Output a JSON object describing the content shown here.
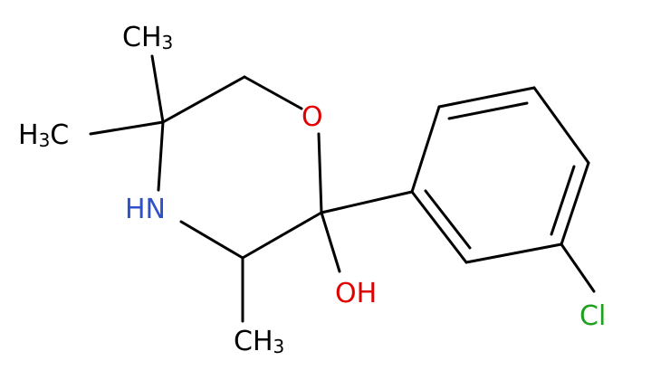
{
  "nodes": [
    {
      "main": "CH",
      "sub": "3"
    },
    {
      "prefix": "H",
      "sub": "3",
      "main": "C"
    },
    {
      "main": "HN"
    },
    {
      "main": "O"
    },
    {
      "main": "OH"
    },
    {
      "main": "CH",
      "sub": "3"
    },
    {
      "main": "Cl"
    }
  ]
}
